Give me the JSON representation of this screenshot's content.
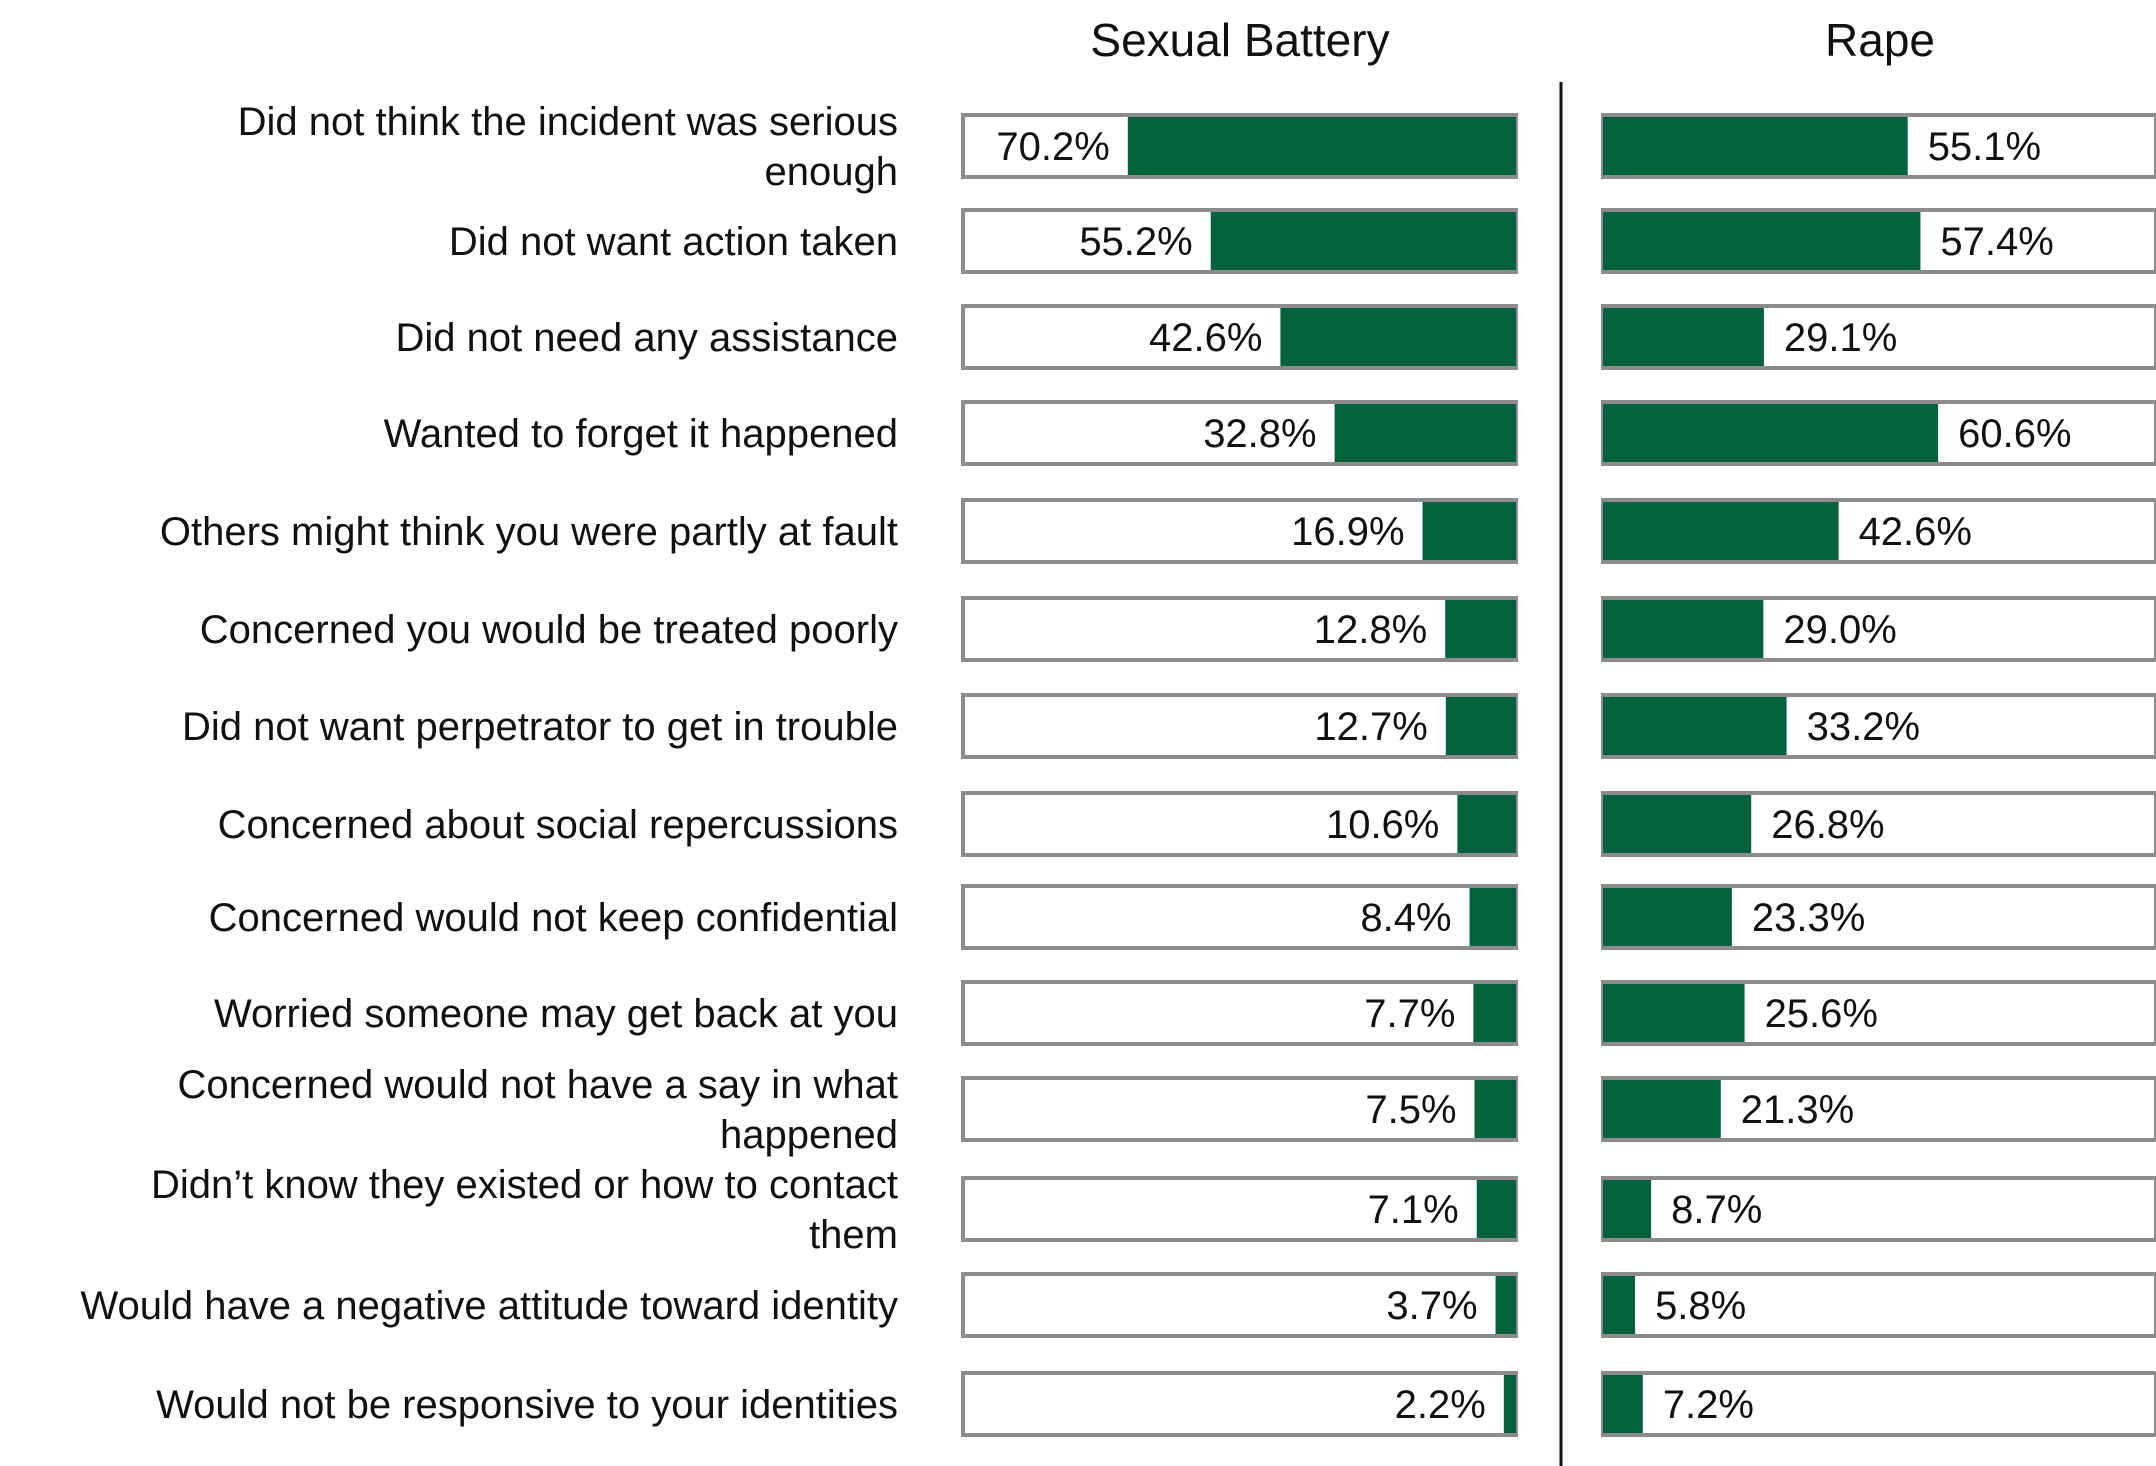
{
  "chart_data": {
    "type": "bar",
    "orientation": "horizontal",
    "categories": [
      "Did not think the incident was serious enough",
      "Did not want action taken",
      "Did not need any assistance",
      "Wanted to forget it happened",
      "Others might think you were partly at fault",
      "Concerned you would be treated poorly",
      "Did not want perpetrator to get in trouble",
      "Concerned about social repercussions",
      "Concerned would not keep confidential",
      "Worried someone may get back at you",
      "Concerned would not have a say in what happened",
      "Didn’t know they existed or how to contact them",
      "Would have a negative attitude toward identity",
      "Would not be responsive to your identities"
    ],
    "series": [
      {
        "name": "Sexual Battery",
        "values": [
          70.2,
          55.2,
          42.6,
          32.8,
          16.9,
          12.8,
          12.7,
          10.6,
          8.4,
          7.7,
          7.5,
          7.1,
          3.7,
          2.2
        ],
        "labels": [
          "70.2%",
          "55.2%",
          "42.6%",
          "32.8%",
          "16.9%",
          "12.8%",
          "12.7%",
          "10.6%",
          "8.4%",
          "7.7%",
          "7.5%",
          "7.1%",
          "3.7%",
          "2.2%"
        ],
        "direction": "right-to-left"
      },
      {
        "name": "Rape",
        "values": [
          55.1,
          57.4,
          29.1,
          60.6,
          42.6,
          29.0,
          33.2,
          26.8,
          23.3,
          25.6,
          21.3,
          8.7,
          5.8,
          7.2
        ],
        "labels": [
          "55.1%",
          "57.4%",
          "29.1%",
          "60.6%",
          "42.6%",
          "29.0%",
          "33.2%",
          "26.8%",
          "23.3%",
          "25.6%",
          "21.3%",
          "8.7%",
          "5.8%",
          "7.2%"
        ],
        "direction": "left-to-right"
      }
    ],
    "xlim": [
      0,
      100
    ],
    "colors": {
      "bar": "#03613d",
      "border": "#8c8c8c",
      "divider": "#111111"
    }
  }
}
